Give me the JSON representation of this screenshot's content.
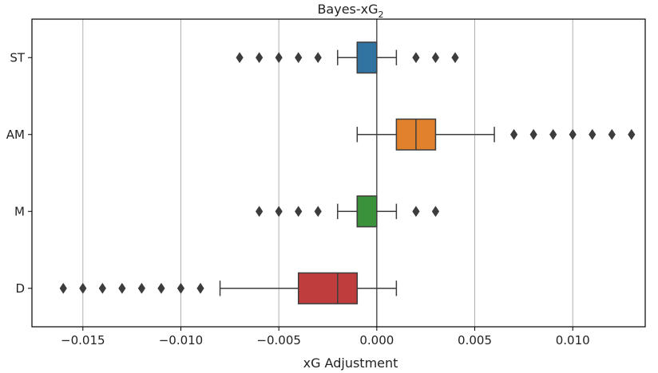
{
  "chart_data": {
    "type": "boxplot",
    "orientation": "horizontal",
    "title": {
      "main": "Bayes-xG",
      "subscript": "2"
    },
    "xlabel": "xG Adjustment",
    "ylabel": "",
    "xlim": [
      -0.0176,
      0.0137
    ],
    "xticks": [
      -0.015,
      -0.01,
      -0.005,
      0.0,
      0.005,
      0.01
    ],
    "xtick_labels": [
      "−0.015",
      "−0.010",
      "−0.005",
      "0.000",
      "0.005",
      "0.010"
    ],
    "grid": {
      "x": true,
      "y": false
    },
    "reference_line": 0.0,
    "categories": [
      "ST",
      "AM",
      "M",
      "D"
    ],
    "boxes": [
      {
        "category": "ST",
        "color": "#3274a1",
        "whisker_low": -0.002,
        "q1": -0.001,
        "median": -0.001,
        "q3": 0.0,
        "whisker_high": 0.001,
        "outliers": [
          -0.007,
          -0.006,
          -0.005,
          -0.004,
          -0.003,
          0.002,
          0.003,
          0.004
        ]
      },
      {
        "category": "AM",
        "color": "#e1812c",
        "whisker_low": -0.001,
        "q1": 0.001,
        "median": 0.002,
        "q3": 0.003,
        "whisker_high": 0.006,
        "outliers": [
          0.007,
          0.008,
          0.009,
          0.01,
          0.011,
          0.012,
          0.013
        ]
      },
      {
        "category": "M",
        "color": "#3a923a",
        "whisker_low": -0.002,
        "q1": -0.001,
        "median": -0.001,
        "q3": 0.0,
        "whisker_high": 0.001,
        "outliers": [
          -0.006,
          -0.005,
          -0.004,
          -0.003,
          0.002,
          0.003
        ]
      },
      {
        "category": "D",
        "color": "#c03d3e",
        "whisker_low": -0.008,
        "q1": -0.004,
        "median": -0.002,
        "q3": -0.001,
        "whisker_high": 0.001,
        "outliers": [
          -0.016,
          -0.015,
          -0.014,
          -0.013,
          -0.012,
          -0.011,
          -0.01,
          -0.009
        ]
      }
    ]
  }
}
